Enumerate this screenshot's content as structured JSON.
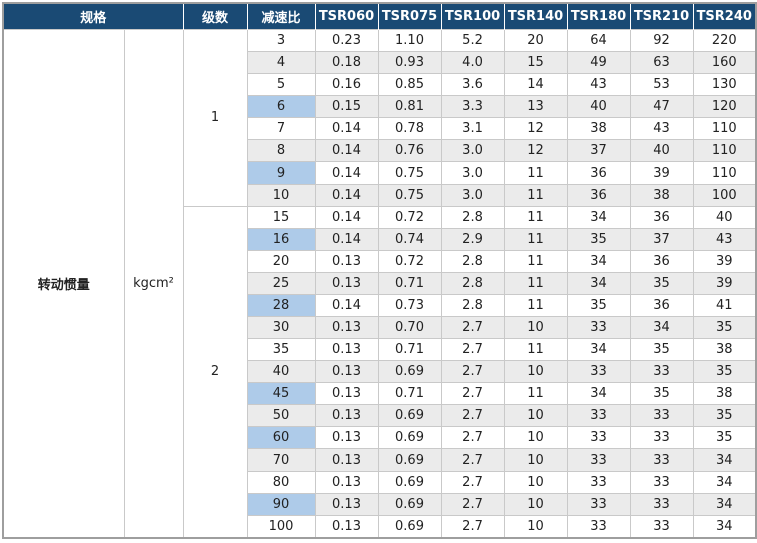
{
  "table": {
    "header": {
      "spec_label": "规格",
      "stage_label": "级数",
      "ratio_label": "减速比",
      "models": [
        "TSR060",
        "TSR075",
        "TSR100",
        "TSR140",
        "TSR180",
        "TSR210",
        "TSR240"
      ]
    },
    "spec_name": "转动惯量",
    "spec_unit": "kgcm²",
    "stages": [
      {
        "label": "1",
        "row_count": 8
      },
      {
        "label": "2",
        "row_count": 15
      }
    ],
    "rows": [
      {
        "ratio": "3",
        "highlighted": false,
        "values": [
          "0.23",
          "1.10",
          "5.2",
          "20",
          "64",
          "92",
          "220"
        ]
      },
      {
        "ratio": "4",
        "highlighted": false,
        "values": [
          "0.18",
          "0.93",
          "4.0",
          "15",
          "49",
          "63",
          "160"
        ]
      },
      {
        "ratio": "5",
        "highlighted": false,
        "values": [
          "0.16",
          "0.85",
          "3.6",
          "14",
          "43",
          "53",
          "130"
        ]
      },
      {
        "ratio": "6",
        "highlighted": true,
        "values": [
          "0.15",
          "0.81",
          "3.3",
          "13",
          "40",
          "47",
          "120"
        ]
      },
      {
        "ratio": "7",
        "highlighted": false,
        "values": [
          "0.14",
          "0.78",
          "3.1",
          "12",
          "38",
          "43",
          "110"
        ]
      },
      {
        "ratio": "8",
        "highlighted": false,
        "values": [
          "0.14",
          "0.76",
          "3.0",
          "12",
          "37",
          "40",
          "110"
        ]
      },
      {
        "ratio": "9",
        "highlighted": true,
        "values": [
          "0.14",
          "0.75",
          "3.0",
          "11",
          "36",
          "39",
          "110"
        ]
      },
      {
        "ratio": "10",
        "highlighted": false,
        "values": [
          "0.14",
          "0.75",
          "3.0",
          "11",
          "36",
          "38",
          "100"
        ]
      },
      {
        "ratio": "15",
        "highlighted": false,
        "values": [
          "0.14",
          "0.72",
          "2.8",
          "11",
          "34",
          "36",
          "40"
        ]
      },
      {
        "ratio": "16",
        "highlighted": true,
        "values": [
          "0.14",
          "0.74",
          "2.9",
          "11",
          "35",
          "37",
          "43"
        ]
      },
      {
        "ratio": "20",
        "highlighted": false,
        "values": [
          "0.13",
          "0.72",
          "2.8",
          "11",
          "34",
          "36",
          "39"
        ]
      },
      {
        "ratio": "25",
        "highlighted": false,
        "values": [
          "0.13",
          "0.71",
          "2.8",
          "11",
          "34",
          "35",
          "39"
        ]
      },
      {
        "ratio": "28",
        "highlighted": true,
        "values": [
          "0.14",
          "0.73",
          "2.8",
          "11",
          "35",
          "36",
          "41"
        ]
      },
      {
        "ratio": "30",
        "highlighted": false,
        "values": [
          "0.13",
          "0.70",
          "2.7",
          "10",
          "33",
          "34",
          "35"
        ]
      },
      {
        "ratio": "35",
        "highlighted": false,
        "values": [
          "0.13",
          "0.71",
          "2.7",
          "11",
          "34",
          "35",
          "38"
        ]
      },
      {
        "ratio": "40",
        "highlighted": false,
        "values": [
          "0.13",
          "0.69",
          "2.7",
          "10",
          "33",
          "33",
          "35"
        ]
      },
      {
        "ratio": "45",
        "highlighted": true,
        "values": [
          "0.13",
          "0.71",
          "2.7",
          "11",
          "34",
          "35",
          "38"
        ]
      },
      {
        "ratio": "50",
        "highlighted": false,
        "values": [
          "0.13",
          "0.69",
          "2.7",
          "10",
          "33",
          "33",
          "35"
        ]
      },
      {
        "ratio": "60",
        "highlighted": true,
        "values": [
          "0.13",
          "0.69",
          "2.7",
          "10",
          "33",
          "33",
          "35"
        ]
      },
      {
        "ratio": "70",
        "highlighted": false,
        "values": [
          "0.13",
          "0.69",
          "2.7",
          "10",
          "33",
          "33",
          "34"
        ]
      },
      {
        "ratio": "80",
        "highlighted": false,
        "values": [
          "0.13",
          "0.69",
          "2.7",
          "10",
          "33",
          "33",
          "34"
        ]
      },
      {
        "ratio": "90",
        "highlighted": true,
        "values": [
          "0.13",
          "0.69",
          "2.7",
          "10",
          "33",
          "33",
          "34"
        ]
      },
      {
        "ratio": "100",
        "highlighted": false,
        "values": [
          "0.13",
          "0.69",
          "2.7",
          "10",
          "33",
          "33",
          "34"
        ]
      }
    ],
    "colors": {
      "header_bg": "#1a4a74",
      "header_text": "#ffffff",
      "row_alt_bg": "#ebebeb",
      "highlight_bg": "#aecbe9",
      "grid_line": "#c9c9c9",
      "outer_border": "#9e9e9e",
      "body_text": "#222222"
    }
  }
}
